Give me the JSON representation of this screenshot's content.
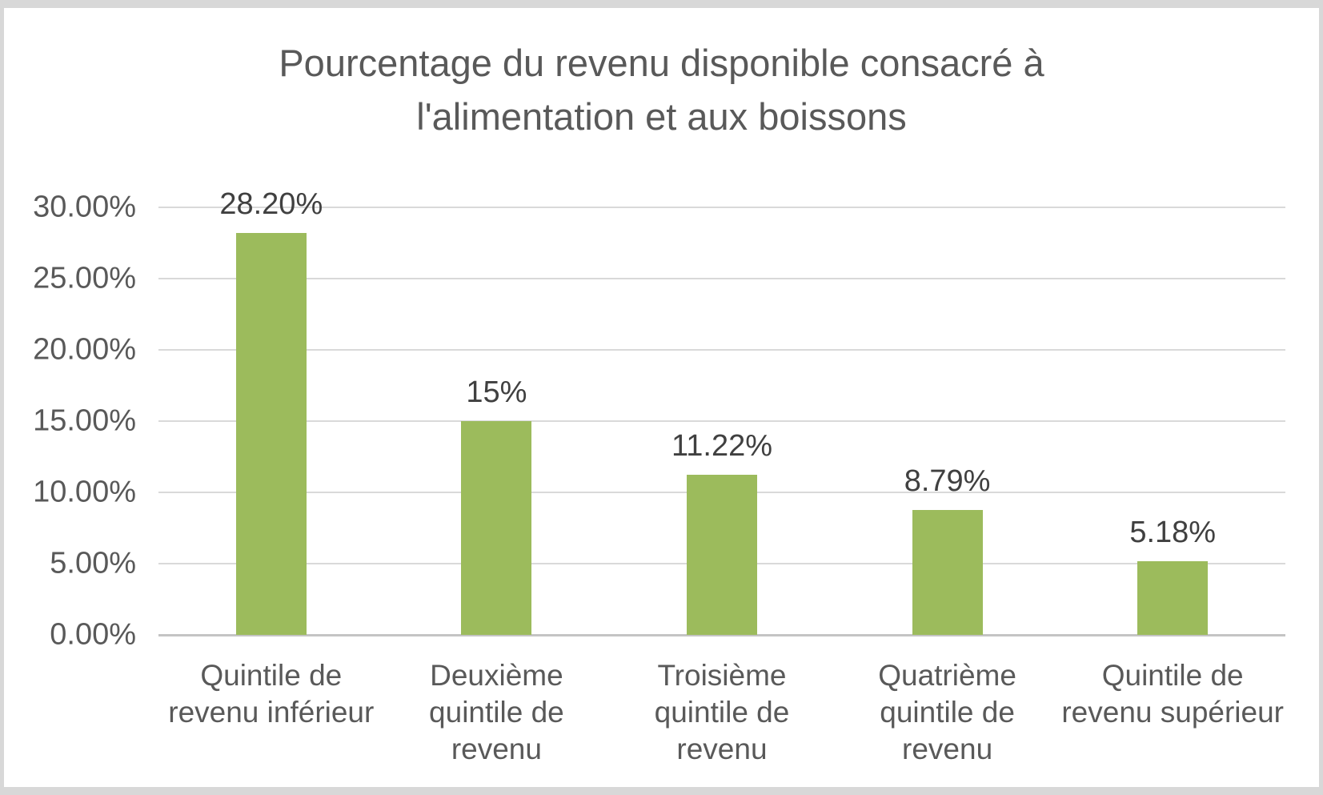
{
  "chart_data": {
    "type": "bar",
    "title": "Pourcentage du revenu disponible consacré à l'alimentation et aux boissons",
    "categories": [
      "Quintile de revenu inférieur",
      "Deuxième quintile de revenu",
      "Troisième quintile de revenu",
      "Quatrième quintile de revenu",
      "Quintile de revenu supérieur"
    ],
    "values": [
      28.2,
      15,
      11.22,
      8.79,
      5.18
    ],
    "data_labels": [
      "28.20%",
      "15%",
      "11.22%",
      "8.79%",
      "5.18%"
    ],
    "yticks": [
      "30.00%",
      "25.00%",
      "20.00%",
      "15.00%",
      "10.00%",
      "5.00%",
      "0.00%"
    ],
    "ytick_values": [
      30,
      25,
      20,
      15,
      10,
      5,
      0
    ],
    "ylim": [
      0,
      30
    ],
    "xlabel": "",
    "ylabel": "",
    "grid": true,
    "legend": false,
    "colors": {
      "bar": "#9CBB5C",
      "title_text": "#595959",
      "axis_text": "#595959",
      "data_label_text": "#404040",
      "gridline": "#D9D9D9",
      "axis_line": "#C4C4C4",
      "frame_border": "#D8D8D8",
      "background": "#FFFFFF"
    }
  }
}
